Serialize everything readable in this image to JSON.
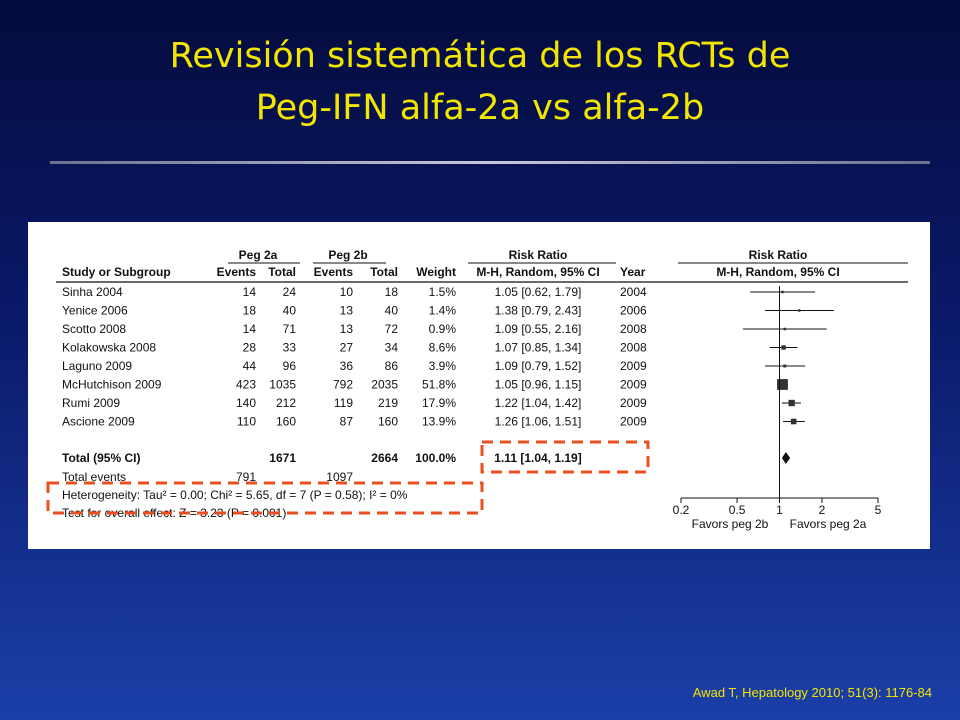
{
  "slide": {
    "title_line1": "Revisión sistemática de los RCTs de",
    "title_line2": "Peg-IFN alfa-2a vs alfa-2b",
    "citation": "Awad T,  Hepatology 2010; 51(3): 1176-84",
    "highlight_color": "#e8501f",
    "title_color": "#f2e600"
  },
  "chart_data": {
    "type": "forest",
    "group_headers": {
      "peg2a": "Peg 2a",
      "peg2b": "Peg 2b",
      "rr": "Risk Ratio",
      "plot": "Risk Ratio"
    },
    "columns": [
      "Study or Subgroup",
      "Events",
      "Total",
      "Events",
      "Total",
      "Weight",
      "M-H, Random, 95% CI",
      "Year",
      "M-H, Random, 95% CI"
    ],
    "studies": [
      {
        "name": "Sinha 2004",
        "e2a": "14",
        "t2a": "24",
        "e2b": "10",
        "t2b": "18",
        "weight": "1.5%",
        "ci_text": "1.05 [0.62, 1.79]",
        "year": "2004",
        "rr": 1.05,
        "lo": 0.62,
        "hi": 1.79,
        "w": 1.5
      },
      {
        "name": "Yenice 2006",
        "e2a": "18",
        "t2a": "40",
        "e2b": "13",
        "t2b": "40",
        "weight": "1.4%",
        "ci_text": "1.38 [0.79, 2.43]",
        "year": "2006",
        "rr": 1.38,
        "lo": 0.79,
        "hi": 2.43,
        "w": 1.4
      },
      {
        "name": "Scotto 2008",
        "e2a": "14",
        "t2a": "71",
        "e2b": "13",
        "t2b": "72",
        "weight": "0.9%",
        "ci_text": "1.09 [0.55, 2.16]",
        "year": "2008",
        "rr": 1.09,
        "lo": 0.55,
        "hi": 2.16,
        "w": 0.9
      },
      {
        "name": "Kolakowska 2008",
        "e2a": "28",
        "t2a": "33",
        "e2b": "27",
        "t2b": "34",
        "weight": "8.6%",
        "ci_text": "1.07 [0.85, 1.34]",
        "year": "2008",
        "rr": 1.07,
        "lo": 0.85,
        "hi": 1.34,
        "w": 8.6
      },
      {
        "name": "Laguno 2009",
        "e2a": "44",
        "t2a": "96",
        "e2b": "36",
        "t2b": "86",
        "weight": "3.9%",
        "ci_text": "1.09 [0.79, 1.52]",
        "year": "2009",
        "rr": 1.09,
        "lo": 0.79,
        "hi": 1.52,
        "w": 3.9
      },
      {
        "name": "McHutchison 2009",
        "e2a": "423",
        "t2a": "1035",
        "e2b": "792",
        "t2b": "2035",
        "weight": "51.8%",
        "ci_text": "1.05 [0.96, 1.15]",
        "year": "2009",
        "rr": 1.05,
        "lo": 0.96,
        "hi": 1.15,
        "w": 51.8
      },
      {
        "name": "Rumi 2009",
        "e2a": "140",
        "t2a": "212",
        "e2b": "119",
        "t2b": "219",
        "weight": "17.9%",
        "ci_text": "1.22 [1.04, 1.42]",
        "year": "2009",
        "rr": 1.22,
        "lo": 1.04,
        "hi": 1.42,
        "w": 17.9
      },
      {
        "name": "Ascione 2009",
        "e2a": "110",
        "t2a": "160",
        "e2b": "87",
        "t2b": "160",
        "weight": "13.9%",
        "ci_text": "1.26 [1.06, 1.51]",
        "year": "2009",
        "rr": 1.26,
        "lo": 1.06,
        "hi": 1.51,
        "w": 13.9
      }
    ],
    "total": {
      "name": "Total (95% CI)",
      "t2a": "1671",
      "t2b": "2664",
      "weight": "100.0%",
      "ci_text": "1.11 [1.04, 1.19]",
      "rr": 1.11,
      "lo": 1.04,
      "hi": 1.19
    },
    "total_events": {
      "label": "Total events",
      "e2a": "791",
      "e2b": "1097"
    },
    "heterogeneity": "Heterogeneity: Tau² = 0.00; Chi² = 5.65, df = 7 (P = 0.58); I² = 0%",
    "overall_effect": "Test for overall effect: Z = 3.23 (P = 0.001)",
    "x_ticks": [
      0.2,
      0.5,
      1,
      2,
      5
    ],
    "x_tick_labels": [
      "0.2",
      "0.5",
      "1",
      "2",
      "5"
    ],
    "xlim": [
      0.2,
      5
    ],
    "x_scale": "log",
    "favors_left": "Favors peg 2b",
    "favors_right": "Favors peg 2a"
  }
}
